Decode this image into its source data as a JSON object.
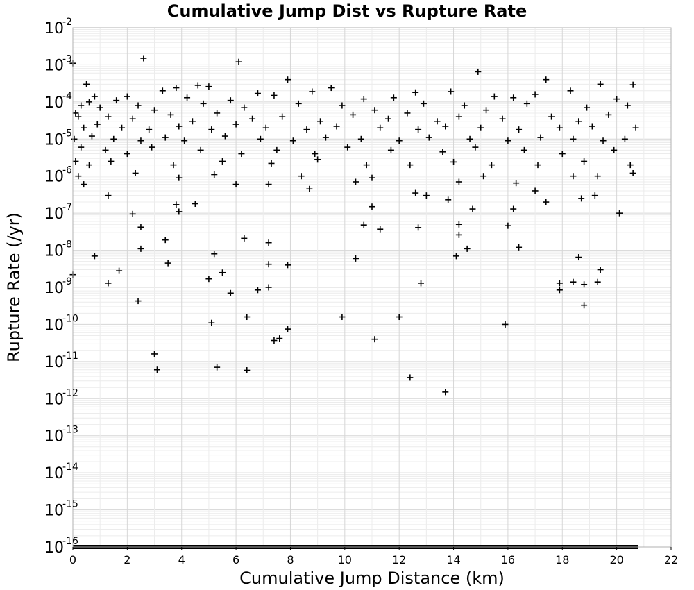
{
  "chart_data": {
    "type": "scatter",
    "title": "Cumulative Jump Dist vs Rupture Rate",
    "xlabel": "Cumulative Jump Distance (km)",
    "ylabel": "Rupture Rate (/yr)",
    "xlim": [
      0,
      22
    ],
    "ylim": [
      1e-16,
      0.01
    ],
    "y_scale": "log",
    "grid": true,
    "marker": "plus",
    "x_ticks": [
      "0",
      "2",
      "4",
      "6",
      "8",
      "10",
      "12",
      "14",
      "16",
      "18",
      "20",
      "22"
    ],
    "y_tick_base": "10",
    "y_tick_exponents": [
      "-2",
      "-3",
      "-4",
      "-5",
      "-6",
      "-7",
      "-8",
      "-9",
      "-10",
      "-11",
      "-12",
      "-13",
      "-14",
      "-15",
      "-16"
    ],
    "points": [
      [
        2.6,
        0.0015
      ],
      [
        6.1,
        0.0012
      ],
      [
        0.0,
        0.0011
      ],
      [
        14.9,
        0.00065
      ],
      [
        7.9,
        0.0004
      ],
      [
        17.4,
        0.0004
      ],
      [
        0.5,
        0.0003
      ],
      [
        4.6,
        0.00028
      ],
      [
        5.0,
        0.00026
      ],
      [
        9.5,
        0.00024
      ],
      [
        19.4,
        0.0003
      ],
      [
        20.6,
        0.00029
      ],
      [
        3.3,
        0.0002
      ],
      [
        3.8,
        0.00024
      ],
      [
        6.8,
        0.00017
      ],
      [
        8.8,
        0.00019
      ],
      [
        12.6,
        0.00018
      ],
      [
        13.9,
        0.00019
      ],
      [
        18.3,
        0.0002
      ],
      [
        0.8,
        0.00014
      ],
      [
        1.6,
        0.00011
      ],
      [
        2.0,
        0.00014
      ],
      [
        4.2,
        0.00013
      ],
      [
        5.8,
        0.00011
      ],
      [
        7.4,
        0.00015
      ],
      [
        10.7,
        0.00012
      ],
      [
        11.8,
        0.00013
      ],
      [
        15.5,
        0.00014
      ],
      [
        16.2,
        0.00013
      ],
      [
        17.0,
        0.00016
      ],
      [
        20.0,
        0.00012
      ],
      [
        0.3,
        8e-05
      ],
      [
        0.6,
        0.0001
      ],
      [
        1.0,
        7e-05
      ],
      [
        2.4,
        8e-05
      ],
      [
        3.0,
        6e-05
      ],
      [
        4.8,
        9e-05
      ],
      [
        6.3,
        7e-05
      ],
      [
        8.3,
        9e-05
      ],
      [
        9.9,
        8e-05
      ],
      [
        11.1,
        6e-05
      ],
      [
        12.9,
        9e-05
      ],
      [
        14.4,
        8e-05
      ],
      [
        15.2,
        6e-05
      ],
      [
        16.7,
        9e-05
      ],
      [
        18.9,
        7e-05
      ],
      [
        20.4,
        8e-05
      ],
      [
        0.1,
        5e-05
      ],
      [
        0.2,
        4e-05
      ],
      [
        1.3,
        4e-05
      ],
      [
        2.2,
        3.5e-05
      ],
      [
        3.6,
        4.5e-05
      ],
      [
        4.4,
        3e-05
      ],
      [
        5.3,
        5e-05
      ],
      [
        6.6,
        3.5e-05
      ],
      [
        7.7,
        4e-05
      ],
      [
        9.1,
        3e-05
      ],
      [
        10.3,
        4.5e-05
      ],
      [
        11.6,
        3.5e-05
      ],
      [
        12.3,
        5e-05
      ],
      [
        13.4,
        3e-05
      ],
      [
        14.2,
        4e-05
      ],
      [
        15.8,
        3.5e-05
      ],
      [
        17.6,
        4e-05
      ],
      [
        18.6,
        3e-05
      ],
      [
        19.7,
        4.5e-05
      ],
      [
        0.4,
        2e-05
      ],
      [
        0.9,
        2.5e-05
      ],
      [
        1.8,
        2e-05
      ],
      [
        2.8,
        1.8e-05
      ],
      [
        3.9,
        2.2e-05
      ],
      [
        5.1,
        1.8e-05
      ],
      [
        6.0,
        2.5e-05
      ],
      [
        7.1,
        2e-05
      ],
      [
        8.6,
        1.8e-05
      ],
      [
        9.7,
        2.2e-05
      ],
      [
        11.3,
        2e-05
      ],
      [
        12.7,
        1.8e-05
      ],
      [
        13.7,
        2.2e-05
      ],
      [
        15.0,
        2e-05
      ],
      [
        16.4,
        1.8e-05
      ],
      [
        17.9,
        2e-05
      ],
      [
        19.1,
        2.2e-05
      ],
      [
        20.7,
        2e-05
      ],
      [
        0.05,
        1e-05
      ],
      [
        0.7,
        1.2e-05
      ],
      [
        1.5,
        1e-05
      ],
      [
        2.5,
        9e-06
      ],
      [
        3.4,
        1.1e-05
      ],
      [
        4.1,
        9e-06
      ],
      [
        5.6,
        1.2e-05
      ],
      [
        6.9,
        1e-05
      ],
      [
        8.1,
        9e-06
      ],
      [
        9.3,
        1.1e-05
      ],
      [
        10.6,
        1e-05
      ],
      [
        12.0,
        9e-06
      ],
      [
        13.1,
        1.1e-05
      ],
      [
        14.6,
        1e-05
      ],
      [
        16.0,
        9e-06
      ],
      [
        17.2,
        1.1e-05
      ],
      [
        18.4,
        1e-05
      ],
      [
        19.5,
        9e-06
      ],
      [
        20.3,
        1e-05
      ],
      [
        0.3,
        6e-06
      ],
      [
        1.2,
        5e-06
      ],
      [
        2.0,
        4e-06
      ],
      [
        2.9,
        6e-06
      ],
      [
        4.7,
        5e-06
      ],
      [
        6.2,
        4e-06
      ],
      [
        7.5,
        5e-06
      ],
      [
        8.9,
        4e-06
      ],
      [
        10.1,
        6e-06
      ],
      [
        11.7,
        5e-06
      ],
      [
        13.6,
        4.5e-06
      ],
      [
        14.8,
        6e-06
      ],
      [
        16.6,
        5e-06
      ],
      [
        18.0,
        4e-06
      ],
      [
        19.9,
        5e-06
      ],
      [
        0.1,
        2.5e-06
      ],
      [
        0.6,
        2e-06
      ],
      [
        1.4,
        2.5e-06
      ],
      [
        3.7,
        2e-06
      ],
      [
        5.5,
        2.5e-06
      ],
      [
        7.3,
        2.2e-06
      ],
      [
        9.0,
        2.8e-06
      ],
      [
        10.8,
        2e-06
      ],
      [
        12.4,
        2e-06
      ],
      [
        14.0,
        2.4e-06
      ],
      [
        15.4,
        2e-06
      ],
      [
        17.1,
        2e-06
      ],
      [
        18.8,
        2.5e-06
      ],
      [
        20.5,
        2e-06
      ],
      [
        0.2,
        1e-06
      ],
      [
        0.4,
        6e-07
      ],
      [
        2.3,
        1.2e-06
      ],
      [
        3.9,
        9e-07
      ],
      [
        5.2,
        1.1e-06
      ],
      [
        6.0,
        6e-07
      ],
      [
        7.2,
        6e-07
      ],
      [
        8.4,
        1e-06
      ],
      [
        10.4,
        7e-07
      ],
      [
        11.0,
        9e-07
      ],
      [
        12.6,
        3.5e-07
      ],
      [
        13.0,
        3e-07
      ],
      [
        14.2,
        7e-07
      ],
      [
        15.1,
        1e-06
      ],
      [
        16.3,
        6.5e-07
      ],
      [
        17.0,
        4e-07
      ],
      [
        18.4,
        1e-06
      ],
      [
        19.3,
        1e-06
      ],
      [
        20.6,
        1.2e-06
      ],
      [
        1.3,
        3e-07
      ],
      [
        3.8,
        1.7e-07
      ],
      [
        3.9,
        1.1e-07
      ],
      [
        4.5,
        1.8e-07
      ],
      [
        8.7,
        4.5e-07
      ],
      [
        11.0,
        1.5e-07
      ],
      [
        13.8,
        2.3e-07
      ],
      [
        14.7,
        1.3e-07
      ],
      [
        16.2,
        1.3e-07
      ],
      [
        17.4,
        2e-07
      ],
      [
        18.7,
        2.5e-07
      ],
      [
        19.2,
        3e-07
      ],
      [
        2.2,
        9.5e-08
      ],
      [
        20.1,
        1e-07
      ],
      [
        2.5,
        4.2e-08
      ],
      [
        10.7,
        4.8e-08
      ],
      [
        11.3,
        3.7e-08
      ],
      [
        12.7,
        4.1e-08
      ],
      [
        14.2,
        5e-08
      ],
      [
        14.2,
        2.6e-08
      ],
      [
        16.0,
        4.6e-08
      ],
      [
        3.4,
        1.9e-08
      ],
      [
        6.3,
        2.1e-08
      ],
      [
        7.2,
        1.6e-08
      ],
      [
        14.5,
        1.1e-08
      ],
      [
        16.4,
        1.2e-08
      ],
      [
        0.8,
        7e-09
      ],
      [
        2.5,
        1.1e-08
      ],
      [
        5.2,
        8e-09
      ],
      [
        10.4,
        6e-09
      ],
      [
        14.1,
        7e-09
      ],
      [
        18.6,
        6.5e-09
      ],
      [
        3.5,
        4.5e-09
      ],
      [
        7.2,
        4.2e-09
      ],
      [
        7.9,
        4e-09
      ],
      [
        1.7,
        2.8e-09
      ],
      [
        5.5,
        2.5e-09
      ],
      [
        19.4,
        3e-09
      ],
      [
        0.0,
        2.2e-09
      ],
      [
        5.0,
        1.7e-09
      ],
      [
        1.3,
        1.3e-09
      ],
      [
        6.8,
        8.5e-10
      ],
      [
        7.2,
        1e-09
      ],
      [
        12.8,
        1.3e-09
      ],
      [
        17.9,
        1.3e-09
      ],
      [
        17.9,
        8.5e-10
      ],
      [
        18.4,
        1.4e-09
      ],
      [
        18.8,
        1.2e-09
      ],
      [
        19.3,
        1.4e-09
      ],
      [
        5.8,
        7e-10
      ],
      [
        2.4,
        4.3e-10
      ],
      [
        18.8,
        3.3e-10
      ],
      [
        6.4,
        1.6e-10
      ],
      [
        9.9,
        1.6e-10
      ],
      [
        12.0,
        1.6e-10
      ],
      [
        5.1,
        1.1e-10
      ],
      [
        15.9,
        1e-10
      ],
      [
        7.9,
        7.5e-11
      ],
      [
        7.4,
        3.7e-11
      ],
      [
        7.6,
        4.2e-11
      ],
      [
        11.1,
        4e-11
      ],
      [
        3.0,
        1.6e-11
      ],
      [
        5.3,
        7e-12
      ],
      [
        3.1,
        6e-12
      ],
      [
        6.4,
        5.8e-12
      ],
      [
        12.4,
        3.7e-12
      ],
      [
        13.7,
        1.5e-12
      ]
    ],
    "floor_value": 1e-16,
    "floor_x_range": [
      0,
      20.8
    ]
  }
}
